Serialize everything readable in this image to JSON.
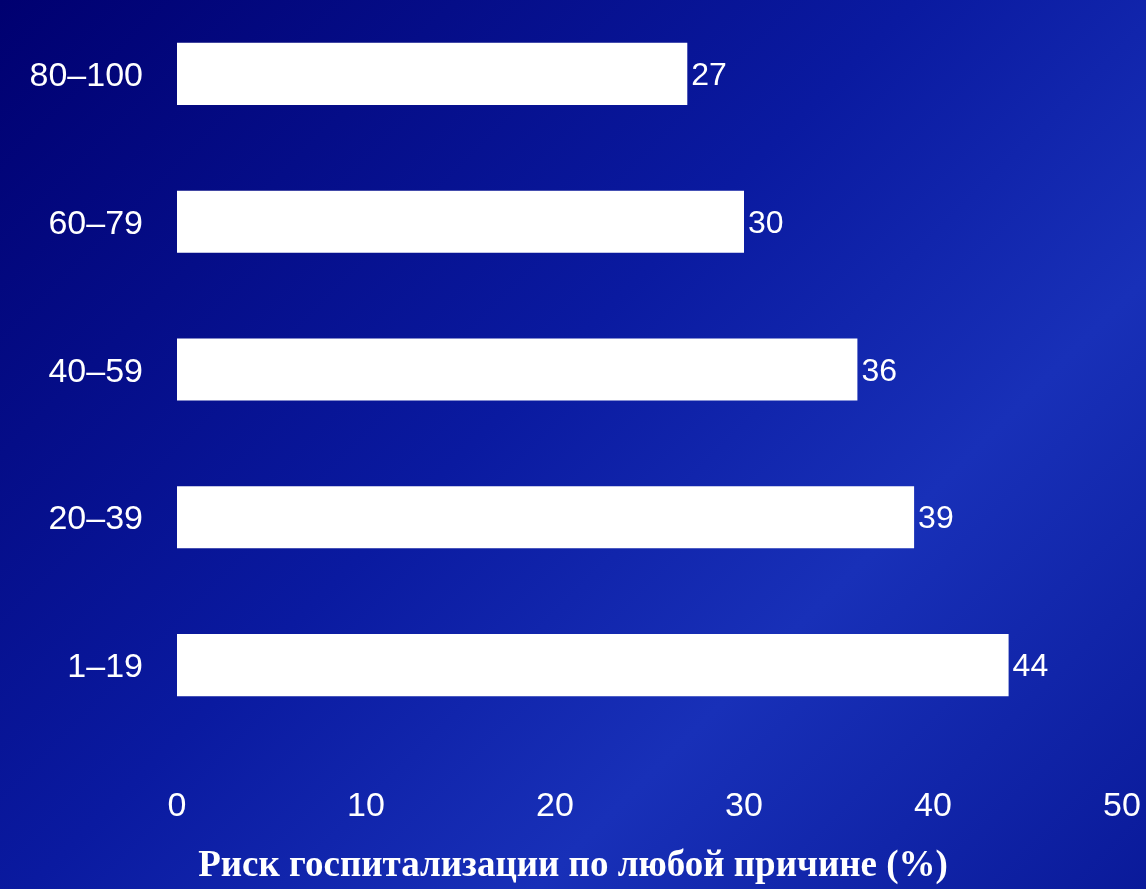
{
  "chart_data": {
    "type": "bar",
    "orientation": "horizontal",
    "xlabel": "Риск госпитализации по любой причине (%)",
    "categories": [
      "80–100",
      "60–79",
      "40–59",
      "20–39",
      "1–19"
    ],
    "values": [
      27,
      30,
      36,
      39,
      44
    ],
    "color": "#ffffff",
    "xlim": [
      0,
      50
    ],
    "xticks": [
      0,
      10,
      20,
      30,
      40,
      50
    ],
    "grid": false,
    "data_labels": true
  }
}
